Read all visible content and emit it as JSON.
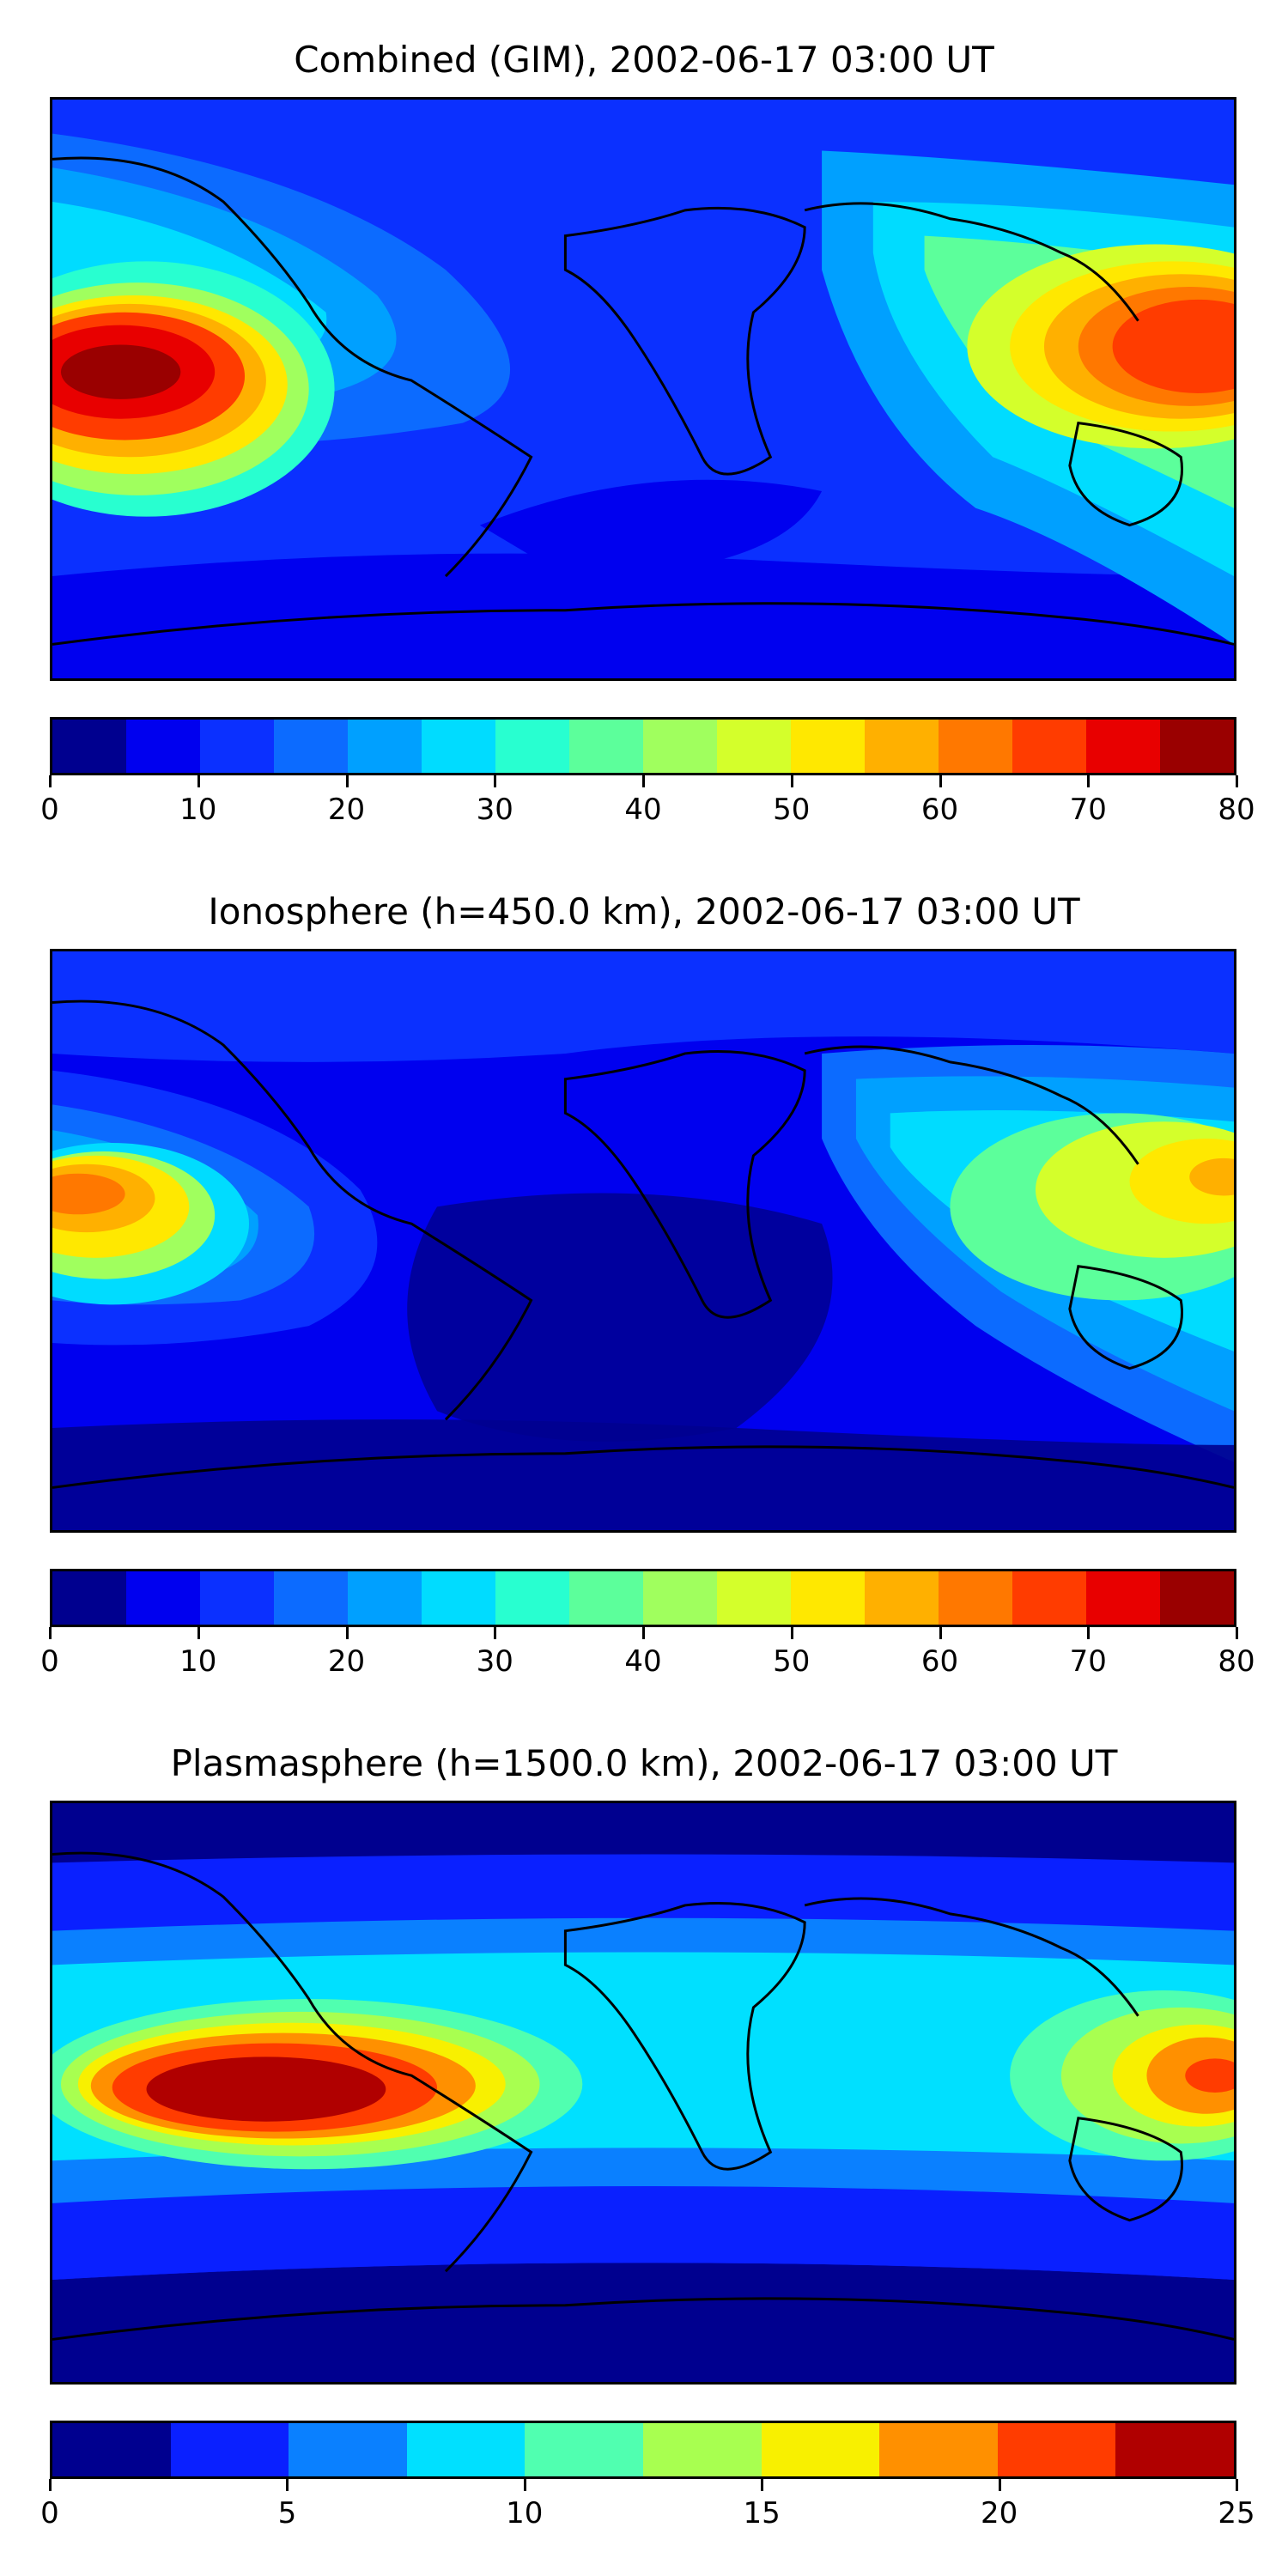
{
  "panels": [
    {
      "title": "Combined (GIM), 2002-06-17 03:00 UT",
      "colorbar": {
        "colors": [
          "#00008f",
          "#0000ef",
          "#0b30ff",
          "#0c6bff",
          "#00a0ff",
          "#00dcff",
          "#28ffd0",
          "#5cff9b",
          "#a0ff5e",
          "#d4ff2b",
          "#ffe800",
          "#ffb000",
          "#ff7800",
          "#ff3c00",
          "#e80000",
          "#9a0000"
        ],
        "ticks": [
          "0",
          "10",
          "20",
          "30",
          "40",
          "50",
          "60",
          "70",
          "80"
        ],
        "range": [
          0,
          80
        ]
      }
    },
    {
      "title": "Ionosphere  (h=450.0 km), 2002-06-17 03:00 UT",
      "colorbar": {
        "colors": [
          "#00008f",
          "#0000ef",
          "#0b30ff",
          "#0c6bff",
          "#00a0ff",
          "#00dcff",
          "#28ffd0",
          "#5cff9b",
          "#a0ff5e",
          "#d4ff2b",
          "#ffe800",
          "#ffb000",
          "#ff7800",
          "#ff3c00",
          "#e80000",
          "#9a0000"
        ],
        "ticks": [
          "0",
          "10",
          "20",
          "30",
          "40",
          "50",
          "60",
          "70",
          "80"
        ],
        "range": [
          0,
          80
        ]
      }
    },
    {
      "title": "Plasmasphere (h=1500.0 km), 2002-06-17 03:00 UT",
      "colorbar": {
        "colors": [
          "#00008f",
          "#0a20ff",
          "#0a80ff",
          "#00e0ff",
          "#50ffb0",
          "#a8ff50",
          "#f8f000",
          "#ff9000",
          "#ff3c00",
          "#b00000"
        ],
        "ticks": [
          "0",
          "5",
          "10",
          "15",
          "20",
          "25"
        ],
        "range": [
          0,
          25
        ]
      }
    }
  ]
}
